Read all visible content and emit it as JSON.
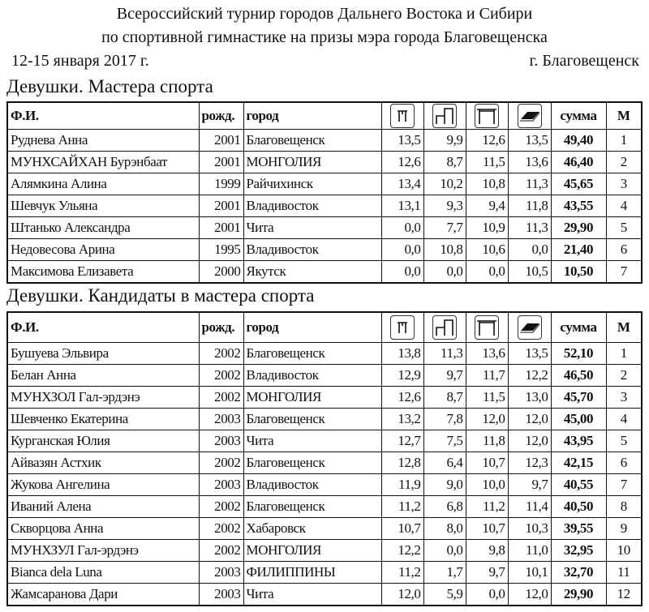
{
  "header": {
    "title_line1": "Всероссийский турнир городов Дальнего Востока и Сибири",
    "title_line2": "по спортивной гимнастике на призы мэра города Благовещенска",
    "date": "12-15 января 2017 г.",
    "place": "г. Благовещенск"
  },
  "columns": {
    "name": "Ф.И.",
    "year": "рожд.",
    "city": "город",
    "icons": [
      "vault-icon",
      "uneven-bars-icon",
      "balance-beam-icon",
      "floor-icon"
    ],
    "sum": "сумма",
    "place": "М"
  },
  "sections": [
    {
      "title": "Девушки. Мастера спорта",
      "rows": [
        [
          "Руднева Анна",
          "2001",
          "Благовещенск",
          "13,5",
          "9,9",
          "12,6",
          "13,5",
          "49,40",
          "1"
        ],
        [
          "МУНХСАЙХАН Бурэнбаат",
          "2001",
          "МОНГОЛИЯ",
          "12,6",
          "8,7",
          "11,5",
          "13,6",
          "46,40",
          "2"
        ],
        [
          "Алямкина Алина",
          "1999",
          "Райчихинск",
          "13,4",
          "10,2",
          "10,8",
          "11,3",
          "45,65",
          "3"
        ],
        [
          "Шевчук Ульяна",
          "2001",
          "Владивосток",
          "13,1",
          "9,3",
          "9,4",
          "11,8",
          "43,55",
          "4"
        ],
        [
          "Штанько Александра",
          "2001",
          "Чита",
          "0,0",
          "7,7",
          "10,9",
          "11,3",
          "29,90",
          "5"
        ],
        [
          "Недовесова Арина",
          "1995",
          "Владивосток",
          "0,0",
          "10,8",
          "10,6",
          "0,0",
          "21,40",
          "6"
        ],
        [
          "Максимова Елизавета",
          "2000",
          "Якутск",
          "0,0",
          "0,0",
          "0,0",
          "10,5",
          "10,50",
          "7"
        ]
      ]
    },
    {
      "title": "Девушки. Кандидаты в мастера спорта",
      "rows": [
        [
          "Бушуева Эльвира",
          "2002",
          "Благовещенск",
          "13,8",
          "11,3",
          "13,6",
          "13,5",
          "52,10",
          "1"
        ],
        [
          "Белан Анна",
          "2002",
          "Владивосток",
          "12,9",
          "9,7",
          "11,7",
          "12,2",
          "46,50",
          "2"
        ],
        [
          "МУНХЗОЛ Гал-эрдэнэ",
          "2002",
          "МОНГОЛИЯ",
          "12,6",
          "8,7",
          "11,5",
          "13,0",
          "45,70",
          "3"
        ],
        [
          "Шевченко Екатерина",
          "2003",
          "Благовещенск",
          "13,2",
          "7,8",
          "12,0",
          "12,0",
          "45,00",
          "4"
        ],
        [
          "Курганская Юлия",
          "2003",
          "Чита",
          "12,7",
          "7,5",
          "11,8",
          "12,0",
          "43,95",
          "5"
        ],
        [
          "Айвазян Астхик",
          "2002",
          "Благовещенск",
          "12,8",
          "6,4",
          "10,7",
          "12,3",
          "42,15",
          "6"
        ],
        [
          "Жукова Ангелина",
          "2003",
          "Владивосток",
          "11,9",
          "9,0",
          "10,0",
          "9,7",
          "40,55",
          "7"
        ],
        [
          "Иваний Алена",
          "2002",
          "Благовещенск",
          "11,2",
          "6,8",
          "11,2",
          "11,4",
          "40,50",
          "8"
        ],
        [
          "Скворцова Анна",
          "2002",
          "Хабаровск",
          "10,7",
          "8,0",
          "10,7",
          "10,3",
          "39,55",
          "9"
        ],
        [
          "МУНХЗУЛ Гал-эрдэнэ",
          "2002",
          "МОНГОЛИЯ",
          "12,2",
          "0,0",
          "9,8",
          "11,0",
          "32,95",
          "10"
        ],
        [
          "Bianca dela Luna",
          "2003",
          "ФИЛИППИНЫ",
          "11,2",
          "1,7",
          "9,7",
          "10,1",
          "32,70",
          "11"
        ],
        [
          "Жамсаранова Дари",
          "2003",
          "Чита",
          "12,0",
          "5,9",
          "0,0",
          "12,0",
          "29,90",
          "12"
        ]
      ]
    }
  ]
}
